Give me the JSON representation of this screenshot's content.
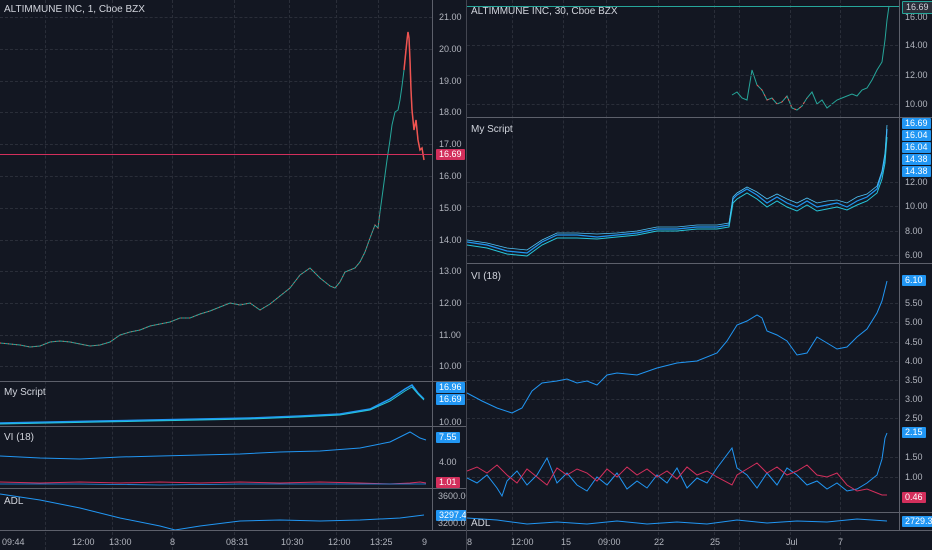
{
  "colors": {
    "background": "#131722",
    "grid": "#2a2e39",
    "up_candle": "#26a69a",
    "down_candle": "#ef5350",
    "script_line": "#2196f3",
    "vi_plus": "#2196f3",
    "vi_minus": "#d32f5c",
    "price_line": "#d32f5c"
  },
  "left": {
    "title": "ALTIMMUNE INC, 1, Cboe BZX",
    "price_axis": [
      "21.00",
      "20.00",
      "19.00",
      "18.00",
      "17.00",
      "16.00",
      "15.00",
      "14.00",
      "13.00",
      "12.00",
      "11.00",
      "10.00"
    ],
    "last_price_tag": "16.69",
    "script_title": "My Script",
    "script_tags": [
      "16.96",
      "16.69"
    ],
    "script_axis": "10.00",
    "vi_title": "VI (18)",
    "vi_tags": [
      "7.55",
      "1.01"
    ],
    "vi_axis": "4.00",
    "adl_title": "ADL",
    "adl_tags": [
      "3600.00",
      "3297.44"
    ],
    "adl_axis": "3200.00",
    "time_axis": [
      "09:44",
      "12:00",
      "13:00",
      "8",
      "08:31",
      "10:30",
      "12:00",
      "13:25",
      "9"
    ]
  },
  "right": {
    "title": "ALTIMMUNE INC, 30, Cboe BZX",
    "price_axis": [
      "16.00",
      "14.00",
      "12.00",
      "10.00"
    ],
    "last_price_tag": "16.69",
    "script_title": "My Script",
    "script_tags": [
      "16.69",
      "16.04",
      "16.04",
      "14.38",
      "14.38"
    ],
    "script_axis": [
      "12.00",
      "10.00",
      "8.00",
      "6.00"
    ],
    "vi_title": "VI (18)",
    "vi_tags": [
      "6.10",
      "2.15",
      "0.46"
    ],
    "vi_axis": [
      "5.50",
      "5.00",
      "4.50",
      "4.00",
      "3.50",
      "3.00",
      "2.50",
      "1.50",
      "1.00"
    ],
    "adl_title": "ADL",
    "adl_tag": "2729.34",
    "time_axis": [
      "8",
      "12:00",
      "15",
      "09:00",
      "22",
      "25",
      "Jul",
      "7"
    ]
  }
}
